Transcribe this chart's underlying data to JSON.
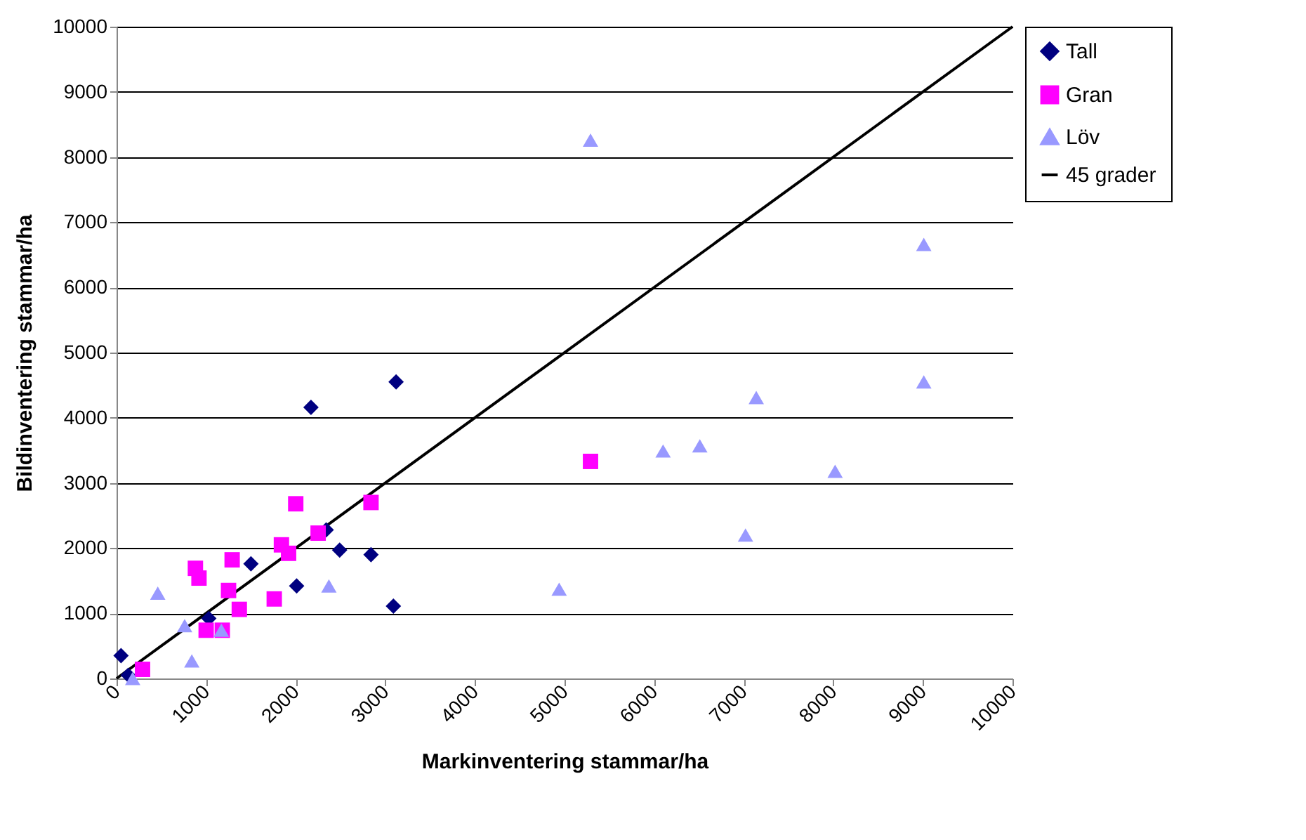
{
  "chart_data": {
    "type": "scatter",
    "xlabel": "Markinventering stammar/ha",
    "ylabel": "Bildinventering stammar/ha",
    "xlim": [
      0,
      10000
    ],
    "xticks": [
      0,
      1000,
      2000,
      3000,
      4000,
      5000,
      6000,
      7000,
      8000,
      9000,
      10000
    ],
    "ylim": [
      0,
      10000
    ],
    "yticks": [
      0,
      1000,
      2000,
      3000,
      4000,
      5000,
      6000,
      7000,
      8000,
      9000,
      10000
    ],
    "grid": "y",
    "legend": "right",
    "series": [
      {
        "name": "Tall",
        "color": "#000080",
        "marker": "diamond",
        "x": [
          50,
          130,
          1030,
          1500,
          2010,
          2170,
          2340,
          2490,
          2840,
          3120,
          3090
        ],
        "values": [
          350,
          50,
          920,
          1760,
          1420,
          4160,
          2280,
          1970,
          1900,
          4550,
          1110
        ]
      },
      {
        "name": "Gran",
        "color": "#ff00ff",
        "marker": "square",
        "x": [
          290,
          880,
          920,
          1000,
          1180,
          1250,
          1290,
          1370,
          1760,
          1840,
          1920,
          2000,
          2250,
          2840,
          5290
        ],
        "values": [
          140,
          1690,
          1540,
          740,
          740,
          1350,
          1820,
          1060,
          1220,
          2050,
          1920,
          2680,
          2230,
          2700,
          3330
        ]
      },
      {
        "name": "Löv",
        "color": "#9999ff",
        "marker": "triangle",
        "x": [
          180,
          460,
          760,
          840,
          1170,
          2370,
          4940,
          5290,
          6100,
          6510,
          7020,
          7140,
          8020,
          9010,
          9010
        ],
        "values": [
          0,
          1310,
          810,
          270,
          740,
          1420,
          1370,
          8260,
          3490,
          3570,
          2200,
          4310,
          3180,
          4550,
          6660
        ]
      },
      {
        "name": "45 grader",
        "type": "line",
        "color": "#000000",
        "marker": "none",
        "line_style": "solid",
        "x": [
          0,
          10000
        ],
        "values": [
          0,
          10000
        ]
      }
    ]
  }
}
